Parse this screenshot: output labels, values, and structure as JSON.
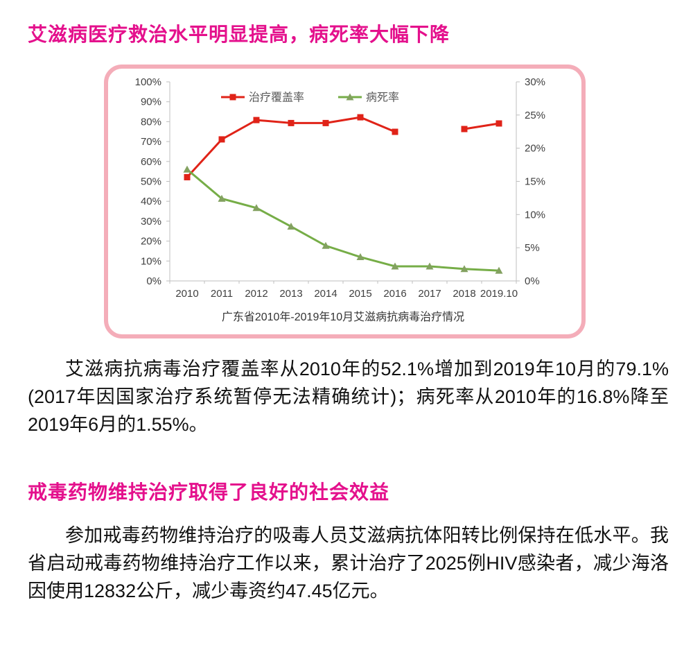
{
  "page": {
    "heading1": "艾滋病医疗救治水平明显提高，病死率大幅下降",
    "paragraph1": "艾滋病抗病毒治疗覆盖率从2010年的52.1%增加到2019年10月的79.1%(2017年因国家治疗系统暂停无法精确统计)；病死率从2010年的16.8%降至2019年6月的1.55%。",
    "heading2": "戒毒药物维持治疗取得了良好的社会效益",
    "paragraph2": "参加戒毒药物维持治疗的吸毒人员艾滋病抗体阳转比例保持在低水平。我省启动戒毒药物维持治疗工作以来，累计治疗了2025例HIV感染者，减少海洛因使用12832公斤，减少毒资约47.45亿元。"
  },
  "colors": {
    "heading_magenta": "#e4108c",
    "card_border_pink": "#f4adb9",
    "coverage_red": "#e02318",
    "fatality_green": "#76ad47",
    "fatality_marker_green": "#83a160",
    "axis_line_gray": "#bfbfbf",
    "axis_label_dark": "#404040",
    "legend_text": "#595959",
    "caption_text": "#333333"
  },
  "chart_data": {
    "type": "line",
    "title": "广东省2010年-2019年10月艾滋病抗病毒治疗情况",
    "categories": [
      "2010",
      "2011",
      "2012",
      "2013",
      "2014",
      "2015",
      "2016",
      "2017",
      "2018",
      "2019.10"
    ],
    "left_axis": {
      "min": 0,
      "max": 100,
      "step": 10,
      "unit": "%"
    },
    "right_axis": {
      "min": 0,
      "max": 30,
      "step": 5,
      "unit": "%"
    },
    "grid": false,
    "legend_position": "top",
    "series": [
      {
        "name": "治疗覆盖率",
        "axis": "left",
        "marker": "square",
        "values": [
          52.1,
          71.1,
          80.8,
          79.3,
          79.3,
          82.2,
          74.9,
          null,
          76.3,
          79.1
        ]
      },
      {
        "name": "病死率",
        "axis": "right",
        "marker": "triangle",
        "values": [
          16.8,
          12.4,
          11.0,
          8.2,
          5.3,
          3.6,
          2.2,
          2.2,
          1.8,
          1.55
        ]
      }
    ]
  }
}
